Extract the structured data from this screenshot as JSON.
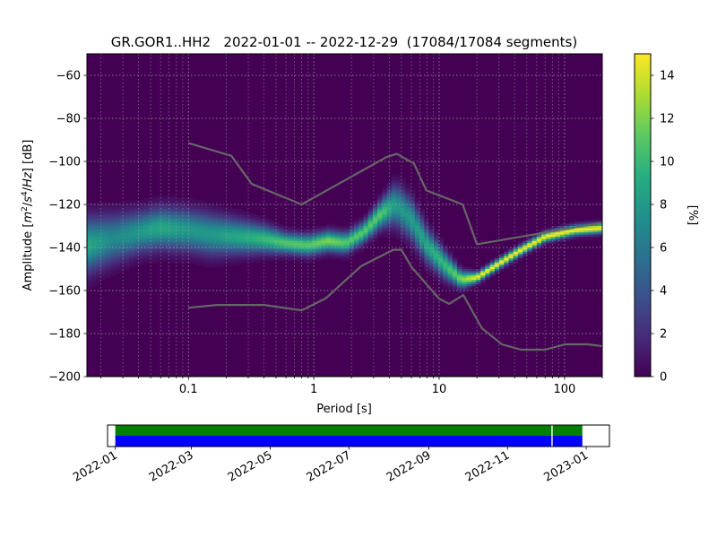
{
  "chart_data": [
    {
      "type": "heatmap",
      "title": "GR.GOR1..HH2   2022-01-01 -- 2022-12-29  (17084/17084 segments)",
      "xlabel": "Period [s]",
      "ylabel_parts": [
        "Amplitude [",
        "m",
        "2",
        "/",
        "s",
        "4",
        "/",
        "Hz",
        "] [dB]"
      ],
      "xscale": "log",
      "xlim": [
        0.0155,
        200
      ],
      "ylim": [
        -200,
        -50
      ],
      "x_ticks": [
        {
          "value": 0.1,
          "label": "0.1"
        },
        {
          "value": 1,
          "label": "1"
        },
        {
          "value": 10,
          "label": "10"
        },
        {
          "value": 100,
          "label": "100"
        }
      ],
      "y_ticks": [
        {
          "value": -60,
          "label": "−60"
        },
        {
          "value": -80,
          "label": "−80"
        },
        {
          "value": -100,
          "label": "−100"
        },
        {
          "value": -120,
          "label": "−120"
        },
        {
          "value": -140,
          "label": "−140"
        },
        {
          "value": -160,
          "label": "−160"
        },
        {
          "value": -180,
          "label": "−180"
        },
        {
          "value": -200,
          "label": "−200"
        }
      ],
      "grid": true,
      "colormap": "viridis",
      "colorbar": {
        "label": "[%]",
        "min": 0,
        "max": 15,
        "ticks": [
          {
            "value": 0,
            "label": "0"
          },
          {
            "value": 2,
            "label": "2"
          },
          {
            "value": 4,
            "label": "4"
          },
          {
            "value": 6,
            "label": "6"
          },
          {
            "value": 8,
            "label": "8"
          },
          {
            "value": 10,
            "label": "10"
          },
          {
            "value": 12,
            "label": "12"
          },
          {
            "value": 14,
            "label": "14"
          }
        ]
      },
      "mode_ridge": [
        {
          "period": 0.0155,
          "db": -139,
          "spread": 8,
          "peak": 9
        },
        {
          "period": 0.025,
          "db": -136,
          "spread": 7,
          "peak": 7
        },
        {
          "period": 0.04,
          "db": -133,
          "spread": 6,
          "peak": 8
        },
        {
          "period": 0.06,
          "db": -131,
          "spread": 6,
          "peak": 9
        },
        {
          "period": 0.1,
          "db": -132,
          "spread": 6,
          "peak": 8
        },
        {
          "period": 0.15,
          "db": -134,
          "spread": 6,
          "peak": 8
        },
        {
          "period": 0.25,
          "db": -135,
          "spread": 5,
          "peak": 9
        },
        {
          "period": 0.4,
          "db": -136,
          "spread": 4,
          "peak": 10
        },
        {
          "period": 0.6,
          "db": -138,
          "spread": 3,
          "peak": 11
        },
        {
          "period": 0.9,
          "db": -139,
          "spread": 3,
          "peak": 11
        },
        {
          "period": 1.3,
          "db": -137,
          "spread": 3,
          "peak": 12
        },
        {
          "period": 1.8,
          "db": -138,
          "spread": 3,
          "peak": 11
        },
        {
          "period": 2.5,
          "db": -133,
          "spread": 3,
          "peak": 11
        },
        {
          "period": 3.5,
          "db": -124,
          "spread": 4,
          "peak": 11
        },
        {
          "period": 4.5,
          "db": -120,
          "spread": 6,
          "peak": 8
        },
        {
          "period": 6,
          "db": -127,
          "spread": 6,
          "peak": 8
        },
        {
          "period": 8,
          "db": -139,
          "spread": 5,
          "peak": 9
        },
        {
          "period": 11,
          "db": -148,
          "spread": 4,
          "peak": 10
        },
        {
          "period": 15,
          "db": -155,
          "spread": 2.5,
          "peak": 12
        },
        {
          "period": 20,
          "db": -154,
          "spread": 1.5,
          "peak": 15
        },
        {
          "period": 40,
          "db": -143,
          "spread": 1.5,
          "peak": 15
        },
        {
          "period": 70,
          "db": -135,
          "spread": 1.5,
          "peak": 15
        },
        {
          "period": 120,
          "db": -132,
          "spread": 1.5,
          "peak": 15
        },
        {
          "period": 200,
          "db": -131,
          "spread": 1.5,
          "peak": 15
        }
      ],
      "noise_models": [
        {
          "name": "upper",
          "color": "#666666",
          "points": [
            [
              0.1,
              -91.5
            ],
            [
              0.22,
              -97.4
            ],
            [
              0.32,
              -110.5
            ],
            [
              0.8,
              -120
            ],
            [
              3.8,
              -98
            ],
            [
              4.6,
              -96.5
            ],
            [
              6.3,
              -101
            ],
            [
              7.9,
              -113.5
            ],
            [
              15.4,
              -120
            ],
            [
              20,
              -138.5
            ],
            [
              354,
              -126
            ]
          ]
        },
        {
          "name": "lower",
          "color": "#666666",
          "points": [
            [
              0.1,
              -168
            ],
            [
              0.17,
              -166.7
            ],
            [
              0.4,
              -166.7
            ],
            [
              0.8,
              -169.2
            ],
            [
              1.24,
              -163.7
            ],
            [
              2.4,
              -148.6
            ],
            [
              4.3,
              -141.1
            ],
            [
              5,
              -141.1
            ],
            [
              6,
              -149
            ],
            [
              10,
              -163.8
            ],
            [
              12,
              -166.2
            ],
            [
              15.6,
              -162.1
            ],
            [
              21.9,
              -177.5
            ],
            [
              31.6,
              -185
            ],
            [
              45,
              -187.5
            ],
            [
              70,
              -187.5
            ],
            [
              101,
              -185
            ],
            [
              154,
              -185
            ],
            [
              328,
              -187.5
            ]
          ]
        }
      ]
    },
    {
      "type": "timeline",
      "xlim": [
        "2021-12-26",
        "2023-01-19"
      ],
      "x_ticks": [
        "2022-01",
        "2022-03",
        "2022-05",
        "2022-07",
        "2022-09",
        "2022-11",
        "2023-01"
      ],
      "rows": [
        {
          "color": "#008000",
          "segments": [
            [
              "2022-01-01",
              "2022-12-05"
            ],
            [
              "2022-12-06",
              "2022-12-29"
            ]
          ]
        },
        {
          "color": "#0000ff",
          "segments": [
            [
              "2022-01-01",
              "2022-12-05"
            ],
            [
              "2022-12-06",
              "2022-12-29"
            ]
          ]
        }
      ]
    }
  ]
}
